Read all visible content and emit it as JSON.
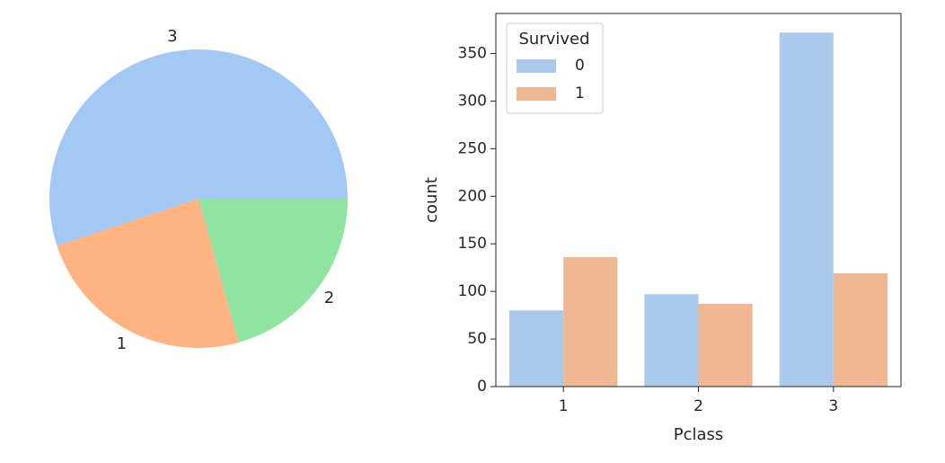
{
  "chart_data": [
    {
      "type": "pie",
      "labels": [
        "3",
        "1",
        "2"
      ],
      "values": [
        491,
        216,
        184
      ],
      "colors": [
        "#a1c9f4",
        "#ffb482",
        "#8de5a1"
      ],
      "start_angle_deg": 0,
      "direction": "counterclockwise"
    },
    {
      "type": "bar",
      "xlabel": "Pclass",
      "ylabel": "count",
      "categories": [
        "1",
        "2",
        "3"
      ],
      "ylim": [
        0,
        392
      ],
      "yticks": [
        0,
        50,
        100,
        150,
        200,
        250,
        300,
        350
      ],
      "legend": {
        "title": "Survived",
        "placement": "top-left"
      },
      "series": [
        {
          "name": "0",
          "values": [
            80,
            97,
            372
          ],
          "color": "#abc9ea"
        },
        {
          "name": "1",
          "values": [
            136,
            87,
            119
          ],
          "color": "#efb792"
        }
      ]
    }
  ]
}
